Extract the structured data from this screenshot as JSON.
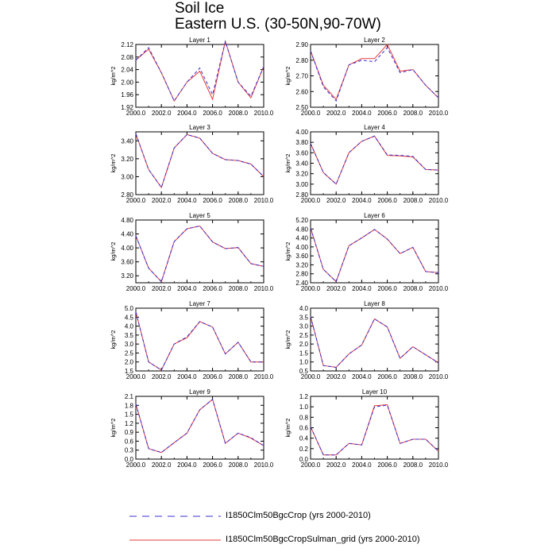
{
  "title": "Soil Ice",
  "subtitle": "Eastern U.S. (30-50N,90-70W)",
  "colors": {
    "series_a": "#3a2fd0",
    "series_b": "#e8383a",
    "axis": "#000000"
  },
  "legend": {
    "series_a_label": "I1850Clm50BgcCrop (yrs 2000-2010)",
    "series_b_label": "I1850Clm50BgcCropSulman_grid (yrs 2000-2010)"
  },
  "chart_data": [
    {
      "type": "line",
      "title": "Layer 1",
      "ylabel": "kg/m^2",
      "x": [
        2000,
        2001,
        2002,
        2003,
        2004,
        2005,
        2006,
        2007,
        2008,
        2009,
        2010
      ],
      "xlim": [
        2000,
        2010
      ],
      "xticks": [
        "2000.0",
        "2002.0",
        "2004.0",
        "2006.0",
        "2008.0",
        "2010.0"
      ],
      "ylim": [
        1.92,
        2.12
      ],
      "yticks": [
        "1.92",
        "1.96",
        "2.00",
        "2.04",
        "2.08",
        "2.12"
      ],
      "series": [
        {
          "values": [
            2.07,
            2.11,
            2.03,
            1.94,
            2.0,
            2.045,
            1.96,
            2.13,
            2.0,
            1.955,
            2.05
          ],
          "dashed": true
        },
        {
          "values": [
            2.07,
            2.105,
            2.03,
            1.94,
            2.0,
            2.035,
            1.945,
            2.13,
            2.0,
            1.95,
            2.05
          ],
          "dashed": false
        }
      ]
    },
    {
      "type": "line",
      "title": "Layer 2",
      "ylabel": "kg/m^2",
      "x": [
        2000,
        2001,
        2002,
        2003,
        2004,
        2005,
        2006,
        2007,
        2008,
        2009,
        2010
      ],
      "xlim": [
        2000,
        2010
      ],
      "xticks": [
        "2000.0",
        "2002.0",
        "2004.0",
        "2006.0",
        "2008.0",
        "2010.0"
      ],
      "ylim": [
        2.5,
        2.9
      ],
      "yticks": [
        "2.50",
        "2.60",
        "2.70",
        "2.80",
        "2.90"
      ],
      "series": [
        {
          "values": [
            2.86,
            2.63,
            2.54,
            2.77,
            2.8,
            2.79,
            2.88,
            2.72,
            2.74,
            2.64,
            2.56
          ],
          "dashed": true
        },
        {
          "values": [
            2.86,
            2.64,
            2.55,
            2.77,
            2.81,
            2.81,
            2.9,
            2.73,
            2.74,
            2.64,
            2.56
          ],
          "dashed": false
        }
      ]
    },
    {
      "type": "line",
      "title": "Layer 3",
      "ylabel": "kg/m^2",
      "x": [
        2000,
        2001,
        2002,
        2003,
        2004,
        2005,
        2006,
        2007,
        2008,
        2009,
        2010
      ],
      "xlim": [
        2000,
        2010
      ],
      "xticks": [
        "2000.0",
        "2002.0",
        "2004.0",
        "2006.0",
        "2008.0",
        "2010.0"
      ],
      "ylim": [
        2.8,
        3.5
      ],
      "yticks": [
        "2.80",
        "3.00",
        "3.20",
        "3.40"
      ],
      "series": [
        {
          "values": [
            3.48,
            3.08,
            2.88,
            3.32,
            3.47,
            3.43,
            3.26,
            3.19,
            3.18,
            3.14,
            3.0
          ],
          "dashed": true
        },
        {
          "values": [
            3.48,
            3.08,
            2.88,
            3.32,
            3.47,
            3.43,
            3.26,
            3.19,
            3.18,
            3.14,
            3.0
          ],
          "dashed": false
        }
      ]
    },
    {
      "type": "line",
      "title": "Layer 4",
      "ylabel": "kg/m^2",
      "x": [
        2000,
        2001,
        2002,
        2003,
        2004,
        2005,
        2006,
        2007,
        2008,
        2009,
        2010
      ],
      "xlim": [
        2000,
        2010
      ],
      "xticks": [
        "2000.0",
        "2002.0",
        "2004.0",
        "2006.0",
        "2008.0",
        "2010.0"
      ],
      "ylim": [
        2.8,
        4.0
      ],
      "yticks": [
        "2.80",
        "3.00",
        "3.20",
        "3.40",
        "3.60",
        "3.80",
        "4.00"
      ],
      "series": [
        {
          "values": [
            3.78,
            3.22,
            3.0,
            3.6,
            3.82,
            3.92,
            3.56,
            3.55,
            3.53,
            3.28,
            3.27
          ],
          "dashed": true
        },
        {
          "values": [
            3.78,
            3.22,
            3.0,
            3.6,
            3.82,
            3.92,
            3.55,
            3.54,
            3.52,
            3.28,
            3.27
          ],
          "dashed": false
        }
      ]
    },
    {
      "type": "line",
      "title": "Layer 5",
      "ylabel": "kg/m^2",
      "x": [
        2000,
        2001,
        2002,
        2003,
        2004,
        2005,
        2006,
        2007,
        2008,
        2009,
        2010
      ],
      "xlim": [
        2000,
        2010
      ],
      "xticks": [
        "2000.0",
        "2002.0",
        "2004.0",
        "2006.0",
        "2008.0",
        "2010.0"
      ],
      "ylim": [
        3.0,
        4.8
      ],
      "yticks": [
        "3.20",
        "3.60",
        "4.00",
        "4.40",
        "4.80"
      ],
      "series": [
        {
          "values": [
            4.35,
            3.42,
            3.03,
            4.18,
            4.55,
            4.63,
            4.17,
            3.98,
            4.01,
            3.55,
            3.47
          ],
          "dashed": true
        },
        {
          "values": [
            4.35,
            3.42,
            3.03,
            4.18,
            4.55,
            4.63,
            4.17,
            3.98,
            4.01,
            3.55,
            3.47
          ],
          "dashed": false
        }
      ]
    },
    {
      "type": "line",
      "title": "Layer 6",
      "ylabel": "kg/m^2",
      "x": [
        2000,
        2001,
        2002,
        2003,
        2004,
        2005,
        2006,
        2007,
        2008,
        2009,
        2010
      ],
      "xlim": [
        2000,
        2010
      ],
      "xticks": [
        "2000.0",
        "2002.0",
        "2004.0",
        "2006.0",
        "2008.0",
        "2010.0"
      ],
      "ylim": [
        2.4,
        5.2
      ],
      "yticks": [
        "2.40",
        "2.80",
        "3.20",
        "3.60",
        "4.00",
        "4.40",
        "4.80",
        "5.20"
      ],
      "series": [
        {
          "values": [
            4.85,
            3.0,
            2.45,
            4.05,
            4.4,
            4.78,
            4.35,
            3.7,
            3.98,
            2.9,
            2.85
          ],
          "dashed": true
        },
        {
          "values": [
            4.85,
            3.0,
            2.45,
            4.05,
            4.4,
            4.78,
            4.35,
            3.7,
            3.98,
            2.9,
            2.85
          ],
          "dashed": false
        }
      ]
    },
    {
      "type": "line",
      "title": "Layer 7",
      "ylabel": "kg/m^2",
      "x": [
        2000,
        2001,
        2002,
        2003,
        2004,
        2005,
        2006,
        2007,
        2008,
        2009,
        2010
      ],
      "xlim": [
        2000,
        2010
      ],
      "xticks": [
        "2000.0",
        "2002.0",
        "2004.0",
        "2006.0",
        "2008.0",
        "2010.0"
      ],
      "ylim": [
        1.5,
        5.0
      ],
      "yticks": [
        "1.5",
        "2.0",
        "2.5",
        "3.0",
        "3.5",
        "4.0",
        "4.5",
        "5.0"
      ],
      "series": [
        {
          "values": [
            4.8,
            2.0,
            1.55,
            3.0,
            3.4,
            4.25,
            3.95,
            2.45,
            3.1,
            2.0,
            2.0
          ],
          "dashed": true
        },
        {
          "values": [
            4.8,
            2.0,
            1.55,
            3.0,
            3.35,
            4.25,
            3.95,
            2.45,
            3.1,
            2.0,
            2.0
          ],
          "dashed": false
        }
      ]
    },
    {
      "type": "line",
      "title": "Layer 8",
      "ylabel": "kg/m^2",
      "x": [
        2000,
        2001,
        2002,
        2003,
        2004,
        2005,
        2006,
        2007,
        2008,
        2009,
        2010
      ],
      "xlim": [
        2000,
        2010
      ],
      "xticks": [
        "2000.0",
        "2002.0",
        "2004.0",
        "2006.0",
        "2008.0",
        "2010.0"
      ],
      "ylim": [
        0.5,
        4.0
      ],
      "yticks": [
        "0.5",
        "1.0",
        "1.5",
        "2.0",
        "2.5",
        "3.0",
        "3.5",
        "4.0"
      ],
      "series": [
        {
          "values": [
            3.55,
            0.8,
            0.7,
            1.45,
            1.95,
            3.4,
            2.95,
            1.2,
            1.85,
            1.4,
            0.95
          ],
          "dashed": true
        },
        {
          "values": [
            3.55,
            0.8,
            0.7,
            1.45,
            1.95,
            3.4,
            2.95,
            1.2,
            1.85,
            1.4,
            0.95
          ],
          "dashed": false
        }
      ]
    },
    {
      "type": "line",
      "title": "Layer 9",
      "ylabel": "kg/m^2",
      "x": [
        2000,
        2001,
        2002,
        2003,
        2004,
        2005,
        2006,
        2007,
        2008,
        2009,
        2010
      ],
      "xlim": [
        2000,
        2010
      ],
      "xticks": [
        "2000.0",
        "2002.0",
        "2004.0",
        "2006.0",
        "2008.0",
        "2010.0"
      ],
      "ylim": [
        0.0,
        2.1
      ],
      "yticks": [
        "0.0",
        "0.3",
        "0.6",
        "0.9",
        "1.2",
        "1.5",
        "1.8",
        "2.1"
      ],
      "series": [
        {
          "values": [
            1.85,
            0.35,
            0.22,
            0.55,
            0.87,
            1.65,
            2.0,
            0.53,
            0.87,
            0.72,
            0.45
          ],
          "dashed": true
        },
        {
          "values": [
            1.85,
            0.35,
            0.22,
            0.55,
            0.87,
            1.65,
            2.0,
            0.53,
            0.87,
            0.7,
            0.45
          ],
          "dashed": false
        }
      ]
    },
    {
      "type": "line",
      "title": "Layer 10",
      "ylabel": "kg/m^2",
      "x": [
        2000,
        2001,
        2002,
        2003,
        2004,
        2005,
        2006,
        2007,
        2008,
        2009,
        2010
      ],
      "xlim": [
        2000,
        2010
      ],
      "xticks": [
        "2000.0",
        "2002.0",
        "2004.0",
        "2006.0",
        "2008.0",
        "2010.0"
      ],
      "ylim": [
        0.0,
        1.2
      ],
      "yticks": [
        "0.0",
        "0.2",
        "0.4",
        "0.6",
        "0.8",
        "1.0",
        "1.2"
      ],
      "series": [
        {
          "values": [
            0.62,
            0.08,
            0.08,
            0.3,
            0.27,
            1.0,
            1.03,
            0.3,
            0.38,
            0.38,
            0.15
          ],
          "dashed": true
        },
        {
          "values": [
            0.62,
            0.08,
            0.08,
            0.3,
            0.27,
            1.02,
            1.04,
            0.3,
            0.38,
            0.38,
            0.15
          ],
          "dashed": false
        }
      ]
    }
  ]
}
